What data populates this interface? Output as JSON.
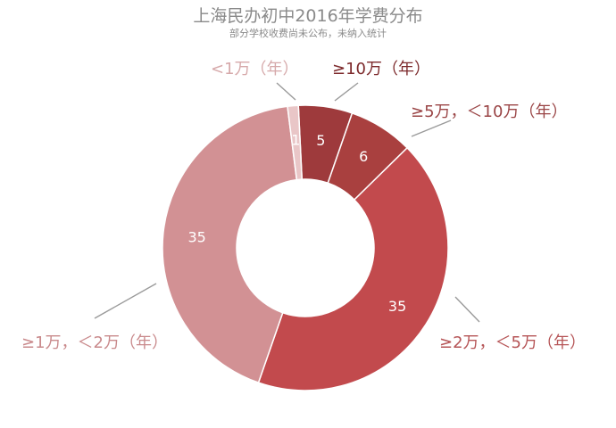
{
  "chart_data": {
    "type": "pie",
    "variant": "donut",
    "title": "上海民办初中2016年学费分布",
    "subtitle": "部分学校收费尚未公布，未纳入统计",
    "slices": [
      {
        "label": "≥10万（年）",
        "value": 5,
        "value_label": "5",
        "color": "#9e3a3c",
        "label_color": "#7d2a2c"
      },
      {
        "label": "≥5万，＜10万（年）",
        "value": 6,
        "value_label": "6",
        "color": "#a9403f",
        "label_color": "#9a4546"
      },
      {
        "label": "≥2万，＜5万（年）",
        "value": 35,
        "value_label": "35",
        "color": "#c24a4d",
        "label_color": "#b65557"
      },
      {
        "label": "≥1万，＜2万（年）",
        "value": 35,
        "value_label": "35",
        "color": "#d29194",
        "label_color": "#c98a8c"
      },
      {
        "label": "<1万（年）",
        "value": 1,
        "value_label": "1",
        "color": "#e9c6c7",
        "label_color": "#d6a9aa"
      }
    ]
  }
}
